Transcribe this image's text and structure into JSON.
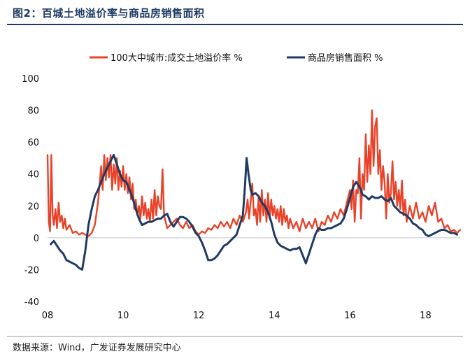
{
  "header": {
    "title": "图2：百城土地溢价率与商品房销售面积"
  },
  "footer": {
    "source": "数据来源：Wind，广发证券发展研究中心"
  },
  "chart_data": {
    "type": "line",
    "title": "",
    "xlabel": "",
    "ylabel": "",
    "ylim": [
      -40,
      100
    ],
    "yticks": [
      100,
      80,
      60,
      40,
      20,
      0,
      -20,
      -40
    ],
    "xticks": [
      {
        "label": "08",
        "t": 0
      },
      {
        "label": "10",
        "t": 24
      },
      {
        "label": "12",
        "t": 48
      },
      {
        "label": "14",
        "t": 72
      },
      {
        "label": "16",
        "t": 96
      },
      {
        "label": "18",
        "t": 120
      }
    ],
    "grid": false,
    "legend": "top",
    "series": [
      {
        "name": "100大中城市:成交土地溢价率 %",
        "color": "#e8432a",
        "points": [
          [
            0,
            52
          ],
          [
            0.4,
            10
          ],
          [
            0.8,
            4
          ],
          [
            1.2,
            52
          ],
          [
            1.6,
            15
          ],
          [
            2,
            8
          ],
          [
            2.5,
            18
          ],
          [
            3,
            6
          ],
          [
            3.5,
            22
          ],
          [
            4,
            10
          ],
          [
            4.5,
            14
          ],
          [
            5,
            6
          ],
          [
            5.5,
            12
          ],
          [
            6,
            5
          ],
          [
            7,
            8
          ],
          [
            8,
            3
          ],
          [
            9,
            4
          ],
          [
            10,
            2
          ],
          [
            11,
            3
          ],
          [
            12,
            2
          ],
          [
            13,
            1
          ],
          [
            14,
            3
          ],
          [
            15,
            8
          ],
          [
            16,
            22
          ],
          [
            17,
            45
          ],
          [
            17.5,
            30
          ],
          [
            18,
            52
          ],
          [
            18.5,
            36
          ],
          [
            19,
            50
          ],
          [
            19.5,
            38
          ],
          [
            20,
            52
          ],
          [
            20.5,
            30
          ],
          [
            21,
            46
          ],
          [
            21.5,
            34
          ],
          [
            22,
            50
          ],
          [
            22.5,
            30
          ],
          [
            23,
            42
          ],
          [
            23.5,
            32
          ],
          [
            24,
            45
          ],
          [
            24.5,
            30
          ],
          [
            25,
            40
          ],
          [
            25.5,
            28
          ],
          [
            26,
            38
          ],
          [
            26.5,
            24
          ],
          [
            27,
            34
          ],
          [
            27.5,
            18
          ],
          [
            28,
            24
          ],
          [
            28.5,
            14
          ],
          [
            29,
            20
          ],
          [
            29.5,
            12
          ],
          [
            30,
            26
          ],
          [
            30.5,
            14
          ],
          [
            31,
            22
          ],
          [
            31.5,
            12
          ],
          [
            32,
            18
          ],
          [
            32.5,
            10
          ],
          [
            33,
            24
          ],
          [
            33.5,
            12
          ],
          [
            34,
            30
          ],
          [
            34.5,
            14
          ],
          [
            35,
            26
          ],
          [
            35.5,
            20
          ],
          [
            36,
            18
          ],
          [
            36.5,
            43
          ],
          [
            37,
            14
          ],
          [
            37.5,
            10
          ],
          [
            38,
            6
          ],
          [
            39,
            8
          ],
          [
            40,
            10
          ],
          [
            41,
            12
          ],
          [
            42,
            8
          ],
          [
            43,
            6
          ],
          [
            44,
            10
          ],
          [
            45,
            6
          ],
          [
            46,
            8
          ],
          [
            47,
            4
          ],
          [
            48,
            2
          ],
          [
            49,
            4
          ],
          [
            50,
            3
          ],
          [
            51,
            6
          ],
          [
            52,
            5
          ],
          [
            53,
            8
          ],
          [
            54,
            6
          ],
          [
            55,
            10
          ],
          [
            56,
            7
          ],
          [
            57,
            10
          ],
          [
            58,
            6
          ],
          [
            59,
            12
          ],
          [
            60,
            8
          ],
          [
            61,
            14
          ],
          [
            62,
            10
          ],
          [
            63,
            16
          ],
          [
            63.5,
            24
          ],
          [
            64,
            12
          ],
          [
            65,
            34
          ],
          [
            65.5,
            14
          ],
          [
            66,
            18
          ],
          [
            66.5,
            8
          ],
          [
            67,
            26
          ],
          [
            67.5,
            10
          ],
          [
            68,
            30
          ],
          [
            68.5,
            14
          ],
          [
            69,
            24
          ],
          [
            69.5,
            10
          ],
          [
            70,
            28
          ],
          [
            70.5,
            12
          ],
          [
            71,
            24
          ],
          [
            71.5,
            14
          ],
          [
            72,
            20
          ],
          [
            72.5,
            12
          ],
          [
            73,
            18
          ],
          [
            73.5,
            10
          ],
          [
            74,
            20
          ],
          [
            74.5,
            8
          ],
          [
            75,
            18
          ],
          [
            75.5,
            10
          ],
          [
            76,
            14
          ],
          [
            76.5,
            6
          ],
          [
            77,
            12
          ],
          [
            78,
            6
          ],
          [
            79,
            10
          ],
          [
            80,
            4
          ],
          [
            81,
            12
          ],
          [
            82,
            6
          ],
          [
            83,
            10
          ],
          [
            84,
            6
          ],
          [
            85,
            12
          ],
          [
            86,
            4
          ],
          [
            87,
            10
          ],
          [
            88,
            8
          ],
          [
            89,
            14
          ],
          [
            90,
            10
          ],
          [
            91,
            16
          ],
          [
            92,
            12
          ],
          [
            93,
            18
          ],
          [
            94,
            14
          ],
          [
            95,
            22
          ],
          [
            96,
            30
          ],
          [
            96.5,
            18
          ],
          [
            97,
            36
          ],
          [
            97.5,
            10
          ],
          [
            98,
            30
          ],
          [
            98.5,
            28
          ],
          [
            99,
            50
          ],
          [
            99.5,
            12
          ],
          [
            100,
            40
          ],
          [
            100.5,
            30
          ],
          [
            101,
            65
          ],
          [
            101.5,
            35
          ],
          [
            102,
            58
          ],
          [
            102.5,
            40
          ],
          [
            103,
            80
          ],
          [
            103.5,
            45
          ],
          [
            104,
            70
          ],
          [
            104.5,
            75
          ],
          [
            105,
            40
          ],
          [
            105.5,
            55
          ],
          [
            106,
            30
          ],
          [
            106.5,
            45
          ],
          [
            107,
            35
          ],
          [
            107.5,
            12
          ],
          [
            108,
            40
          ],
          [
            108.5,
            22
          ],
          [
            109,
            28
          ],
          [
            109.5,
            48
          ],
          [
            110,
            24
          ],
          [
            110.5,
            35
          ],
          [
            111,
            20
          ],
          [
            111.5,
            30
          ],
          [
            112,
            18
          ],
          [
            112.5,
            36
          ],
          [
            113,
            14
          ],
          [
            113.5,
            24
          ],
          [
            114,
            10
          ],
          [
            115,
            20
          ],
          [
            116,
            12
          ],
          [
            117,
            22
          ],
          [
            118,
            12
          ],
          [
            119,
            16
          ],
          [
            120,
            10
          ],
          [
            121,
            20
          ],
          [
            122,
            14
          ],
          [
            123,
            22
          ],
          [
            124,
            10
          ],
          [
            125,
            12
          ],
          [
            126,
            6
          ],
          [
            127,
            8
          ],
          [
            128,
            4
          ],
          [
            129,
            5
          ],
          [
            130,
            3
          ],
          [
            131,
            5
          ]
        ]
      },
      {
        "name": "商品房销售面积 %",
        "color": "#1f3b63",
        "points": [
          [
            1,
            -4
          ],
          [
            2,
            -2
          ],
          [
            3,
            -5
          ],
          [
            4,
            -8
          ],
          [
            5,
            -10
          ],
          [
            6,
            -14
          ],
          [
            7,
            -15
          ],
          [
            8,
            -16
          ],
          [
            9,
            -17
          ],
          [
            10,
            -19
          ],
          [
            11,
            -20
          ],
          [
            12,
            -8
          ],
          [
            13,
            8
          ],
          [
            14,
            18
          ],
          [
            15,
            26
          ],
          [
            16,
            30
          ],
          [
            17,
            35
          ],
          [
            18,
            40
          ],
          [
            19,
            44
          ],
          [
            20,
            48
          ],
          [
            21,
            52
          ],
          [
            22,
            46
          ],
          [
            23,
            40
          ],
          [
            24,
            36
          ],
          [
            25,
            35
          ],
          [
            26,
            30
          ],
          [
            27,
            25
          ],
          [
            28,
            18
          ],
          [
            29,
            12
          ],
          [
            30,
            8
          ],
          [
            31,
            9
          ],
          [
            32,
            10
          ],
          [
            33,
            10
          ],
          [
            34,
            11
          ],
          [
            35,
            12
          ],
          [
            36,
            12
          ],
          [
            37,
            14
          ],
          [
            38,
            15
          ],
          [
            39,
            10
          ],
          [
            40,
            7
          ],
          [
            41,
            10
          ],
          [
            42,
            13
          ],
          [
            43,
            13
          ],
          [
            44,
            12
          ],
          [
            45,
            10
          ],
          [
            46,
            7
          ],
          [
            47,
            3
          ],
          [
            48,
            1
          ],
          [
            49,
            -3
          ],
          [
            50,
            -8
          ],
          [
            51,
            -14
          ],
          [
            52,
            -14
          ],
          [
            53,
            -13
          ],
          [
            54,
            -11
          ],
          [
            55,
            -8
          ],
          [
            56,
            -5
          ],
          [
            57,
            -4
          ],
          [
            58,
            -2
          ],
          [
            59,
            0
          ],
          [
            60,
            2
          ],
          [
            61,
            8
          ],
          [
            62,
            14
          ],
          [
            62.6,
            30
          ],
          [
            63.2,
            50
          ],
          [
            63.8,
            40
          ],
          [
            64.5,
            30
          ],
          [
            65,
            27
          ],
          [
            66,
            28
          ],
          [
            67,
            26
          ],
          [
            68,
            22
          ],
          [
            69,
            20
          ],
          [
            70,
            16
          ],
          [
            71,
            10
          ],
          [
            72,
            2
          ],
          [
            73,
            -3
          ],
          [
            74,
            -5
          ],
          [
            75,
            -6
          ],
          [
            76,
            -7
          ],
          [
            77,
            -8
          ],
          [
            78,
            -7
          ],
          [
            79,
            -7
          ],
          [
            80,
            -6
          ],
          [
            81,
            -11
          ],
          [
            82,
            -16
          ],
          [
            83,
            -10
          ],
          [
            84,
            -4
          ],
          [
            85,
            2
          ],
          [
            86,
            6
          ],
          [
            87,
            5
          ],
          [
            88,
            5
          ],
          [
            89,
            6
          ],
          [
            90,
            6
          ],
          [
            91,
            7
          ],
          [
            92,
            8
          ],
          [
            93,
            9
          ],
          [
            94,
            12
          ],
          [
            95,
            18
          ],
          [
            96,
            25
          ],
          [
            97,
            32
          ],
          [
            98,
            35
          ],
          [
            99,
            32
          ],
          [
            100,
            27
          ],
          [
            101,
            26
          ],
          [
            102,
            24
          ],
          [
            103,
            26
          ],
          [
            104,
            25
          ],
          [
            105,
            25
          ],
          [
            106,
            26
          ],
          [
            107,
            24
          ],
          [
            108,
            23
          ],
          [
            109,
            25
          ],
          [
            110,
            20
          ],
          [
            111,
            18
          ],
          [
            112,
            16
          ],
          [
            113,
            15
          ],
          [
            114,
            14
          ],
          [
            115,
            12
          ],
          [
            116,
            9
          ],
          [
            117,
            8
          ],
          [
            118,
            6
          ],
          [
            119,
            5
          ],
          [
            120,
            2
          ],
          [
            121,
            1
          ],
          [
            122,
            2
          ],
          [
            123,
            3
          ],
          [
            124,
            4
          ],
          [
            125,
            5
          ],
          [
            126,
            5
          ],
          [
            127,
            4
          ],
          [
            128,
            3
          ],
          [
            129,
            3
          ],
          [
            130,
            2
          ]
        ]
      }
    ]
  }
}
